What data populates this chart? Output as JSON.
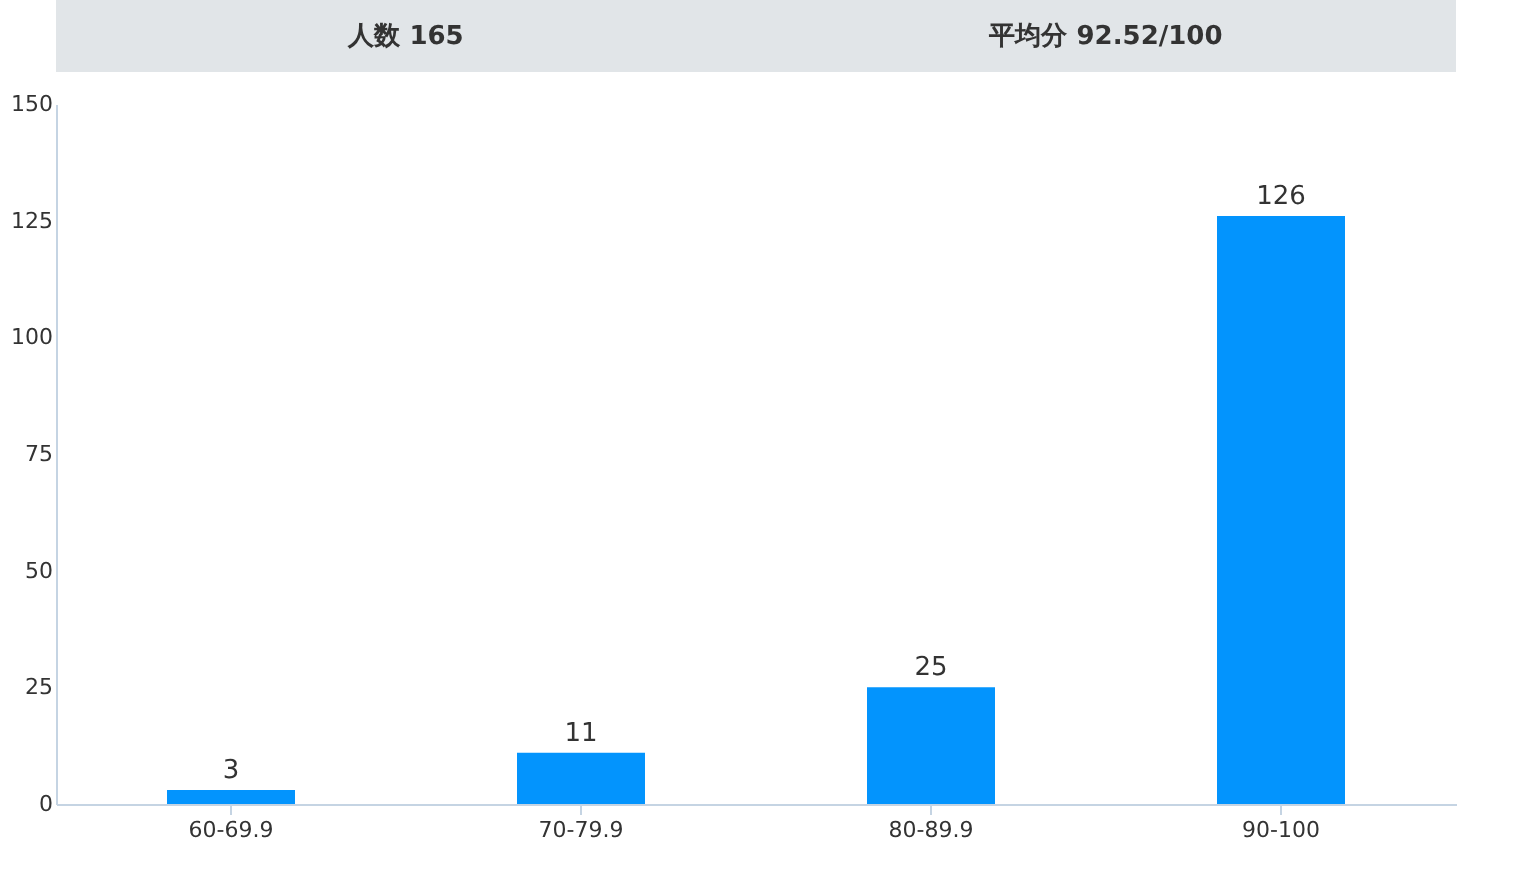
{
  "chart_data": {
    "type": "bar",
    "annotations": [
      "人数 165",
      "平均分 92.52/100"
    ],
    "categories": [
      "60-69.9",
      "70-79.9",
      "80-89.9",
      "90-100"
    ],
    "values": [
      3,
      11,
      25,
      126
    ],
    "color": "#0394fd",
    "ylim": [
      0,
      150
    ],
    "yticks": [
      0,
      25,
      50,
      75,
      100,
      125,
      150
    ],
    "grid": false,
    "data_labels": true
  }
}
